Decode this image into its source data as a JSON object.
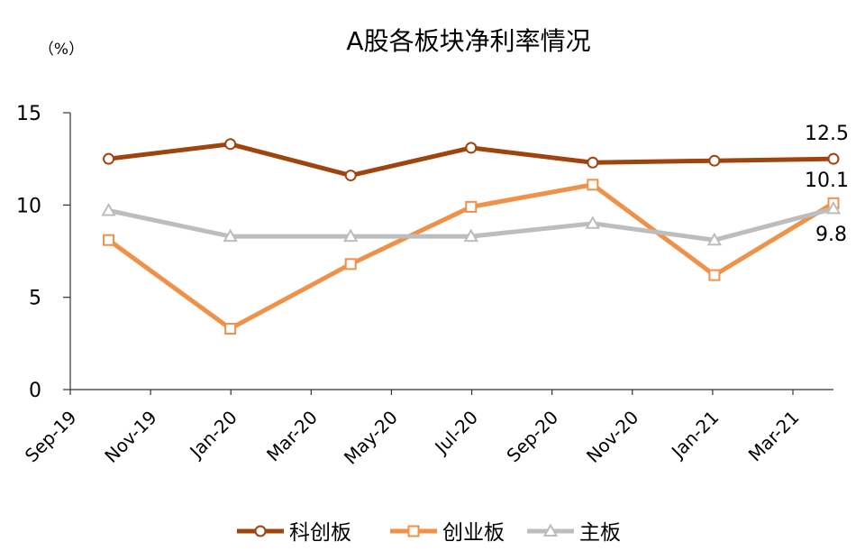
{
  "chart_data": {
    "type": "line",
    "title": "A股各板块净利率情况",
    "unit_label": "（%）",
    "x": [
      "2019-09-30",
      "2019-12-31",
      "2020-03-31",
      "2020-06-30",
      "2020-09-30",
      "2020-12-31",
      "2021-03-31"
    ],
    "xlim": [
      "2019-09-01",
      "2021-03-31"
    ],
    "x_ticks": [
      "Sep-19",
      "Nov-19",
      "Jan-20",
      "Mar-20",
      "May-20",
      "Jul-20",
      "Sep-20",
      "Nov-20",
      "Jan-21",
      "Mar-21"
    ],
    "ylim": [
      0,
      15
    ],
    "y_ticks": [
      "0",
      "5",
      "10",
      "15"
    ],
    "grid": false,
    "legend_position": "bottom",
    "series": [
      {
        "name": "科创板",
        "color": "#a0440e",
        "marker": "circle",
        "values": [
          12.5,
          13.3,
          11.6,
          13.1,
          12.3,
          12.4,
          12.5
        ]
      },
      {
        "name": "创业板",
        "color": "#f0914a",
        "marker": "square",
        "values": [
          8.1,
          3.3,
          6.8,
          9.9,
          11.1,
          6.2,
          10.1
        ]
      },
      {
        "name": "主板",
        "color": "#bdbdbd",
        "marker": "triangle",
        "values": [
          9.7,
          8.3,
          8.3,
          8.3,
          9.0,
          8.1,
          9.8
        ]
      }
    ],
    "end_labels": [
      "12.5",
      "10.1",
      "9.8"
    ]
  }
}
